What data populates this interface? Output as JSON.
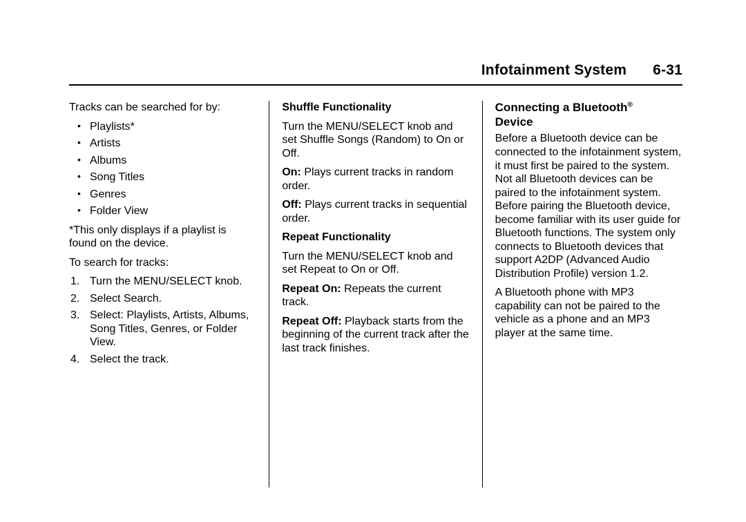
{
  "header": {
    "title": "Infotainment System",
    "page": "6-31"
  },
  "col1": {
    "intro": "Tracks can be searched for by:",
    "bullets": [
      "Playlists*",
      "Artists",
      "Albums",
      "Song Titles",
      "Genres",
      "Folder View"
    ],
    "footnote": "*This only displays if a playlist is found on the device.",
    "search_intro": "To search for tracks:",
    "steps": [
      "Turn the MENU/SELECT knob.",
      "Select Search.",
      "Select: Playlists, Artists, Albums, Song Titles, Genres, or Folder View.",
      "Select the track."
    ]
  },
  "col2": {
    "h1": "Shuffle Functionality",
    "p1": "Turn the MENU/SELECT knob and set Shuffle Songs (Random) to On or Off.",
    "on_label": "On:",
    "on_text": "  Plays current tracks in random order.",
    "off_label": "Off:",
    "off_text": "  Plays current tracks in sequential order.",
    "h2": "Repeat Functionality",
    "p2": "Turn the MENU/SELECT knob and set Repeat to On or Off.",
    "ron_label": "Repeat On:",
    "ron_text": "  Repeats the current track.",
    "roff_label": "Repeat Off:",
    "roff_text": "  Playback starts from the beginning of the current track after the last track finishes."
  },
  "col3": {
    "heading_pre": "Connecting a Bluetooth",
    "heading_reg": "®",
    "heading_post": "Device",
    "p1": "Before a Bluetooth device can be connected to the infotainment system, it must first be paired to the system. Not all Bluetooth devices can be paired to the infotainment system. Before pairing the Bluetooth device, become familiar with its user guide for Bluetooth functions. The system only connects to Bluetooth devices that support A2DP (Advanced Audio Distribution Profile) version 1.2.",
    "p2": "A Bluetooth phone with MP3 capability can not be paired to the vehicle as a phone and an MP3 player at the same time."
  }
}
